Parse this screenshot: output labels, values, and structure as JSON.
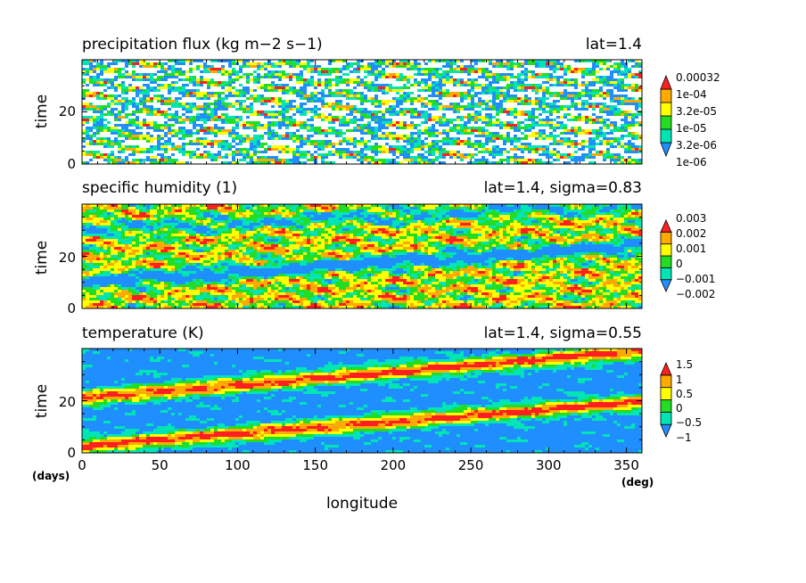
{
  "chart_data": [
    {
      "type": "heatmap",
      "title": "precipitation flux (kg m−2 s−1)",
      "subtitle": "lat=1.4",
      "ylabel": "time",
      "xlim": [
        0,
        360
      ],
      "ylim": [
        0,
        40
      ],
      "y_ticks": [
        "0",
        "20"
      ],
      "colorbar_labels": [
        "0.00032",
        "1e-04",
        "3.2e-05",
        "1e-05",
        "3.2e-06",
        "1e-06"
      ],
      "colors": [
        "#ffffff",
        "#1f8fff",
        "#00e4b6",
        "#22dd22",
        "#ffff00",
        "#ffaa00",
        "#ff2020"
      ],
      "pattern": "intermittent streaky rain bands, ~30% no-rain (white)"
    },
    {
      "type": "heatmap",
      "title": "specific humidity (1)",
      "subtitle": "lat=1.4, sigma=0.83",
      "ylabel": "time",
      "xlim": [
        0,
        360
      ],
      "ylim": [
        0,
        40
      ],
      "y_ticks": [
        "0",
        "20"
      ],
      "colorbar_labels": [
        "0.003",
        "0.002",
        "0.001",
        "0",
        "−0.001",
        "−0.002"
      ],
      "colors": [
        "#1f8fff",
        "#00e4b6",
        "#22dd22",
        "#ffff00",
        "#ffaa00",
        "#ff2020"
      ],
      "pattern": "patchy anomalies with an eastward-tilting dry (blue) band"
    },
    {
      "type": "heatmap",
      "title": "temperature (K)",
      "subtitle": "lat=1.4, sigma=0.55",
      "ylabel": "time",
      "xlabel": "longitude",
      "xlim": [
        0,
        360
      ],
      "ylim": [
        0,
        40
      ],
      "x_ticks": [
        "0",
        "50",
        "100",
        "150",
        "200",
        "250",
        "300",
        "350"
      ],
      "y_ticks": [
        "0",
        "20"
      ],
      "x_unit": "(deg)",
      "y_unit": "(days)",
      "colorbar_labels": [
        "1.5",
        "1",
        "0.5",
        "0",
        "−0.5",
        "−1"
      ],
      "colors": [
        "#1f8fff",
        "#00e4b6",
        "#22dd22",
        "#ffff00",
        "#ffaa00",
        "#ff2020"
      ],
      "pattern": "two warm (red) bands propagating eastward with period ~20 days, cold (blue) background"
    }
  ]
}
